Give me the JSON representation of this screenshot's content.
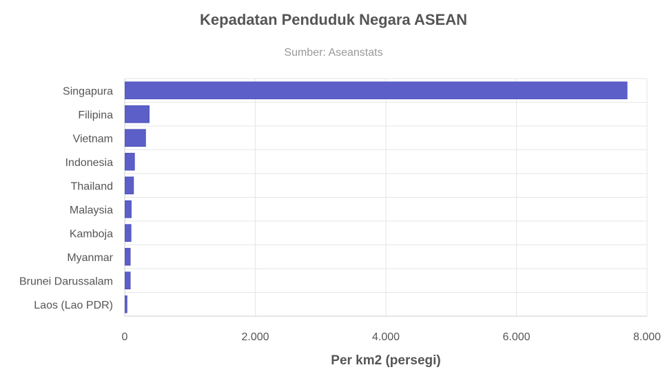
{
  "chart_data": {
    "type": "bar",
    "orientation": "horizontal",
    "title": "Kepadatan Penduduk Negara ASEAN",
    "subtitle": "Sumber: Aseanstats",
    "xlabel": "Per km2 (persegi)",
    "ylabel": "",
    "categories": [
      "Singapura",
      "Filipina",
      "Vietnam",
      "Indonesia",
      "Thailand",
      "Malaysia",
      "Kamboja",
      "Myanmar",
      "Brunei Darussalam",
      "Laos (Lao PDR)"
    ],
    "values": [
      7690,
      370,
      315,
      145,
      130,
      95,
      92,
      80,
      80,
      30
    ],
    "xlim": [
      0,
      8000
    ],
    "ticks": [
      0,
      2000,
      4000,
      6000,
      8000
    ],
    "tick_labels": [
      "0",
      "2.000",
      "4.000",
      "6.000",
      "8.000"
    ],
    "grid": true,
    "legend": "none",
    "colors": {
      "bar": "#5b5fc7",
      "bar_edge": "#4a4eb8",
      "grid": "#e6e6e6",
      "axis": "#cccccc",
      "text": "#555555",
      "subtitle": "#999999"
    }
  }
}
